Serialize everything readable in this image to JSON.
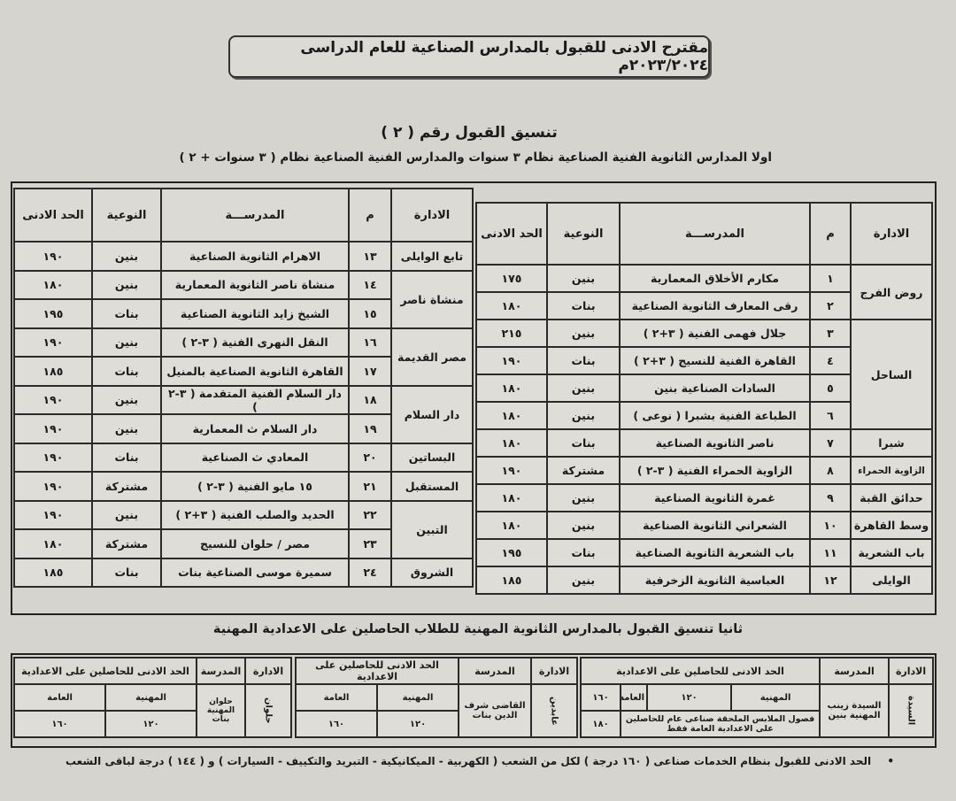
{
  "header": {
    "title": "مقترح الادنى للقبول بالمدارس الصناعية للعام الدراسى ٢٠٢٣/٢٠٢٤م",
    "coordination_title": "تنسيق القبول رقم ( ٢ )",
    "subtitle": "اولا  المدارس الثانوية الفنية الصناعية نظام ٣ سنوات والمدارس الفنية الصناعية نظام ( ٣ سنوات + ٢ )"
  },
  "columns": {
    "admin": "الادارة",
    "num": "م",
    "school": "المدرســـة",
    "type": "النوعية",
    "min": "الحد الادنى"
  },
  "right_table": [
    {
      "admin": "روض الفرج",
      "rows": [
        {
          "n": "١",
          "school": "مكارم الأخلاق المعمارية",
          "type": "بنين",
          "min": "١٧٥"
        },
        {
          "n": "٢",
          "school": "رقى المعارف الثانوية الصناعية",
          "type": "بنات",
          "min": "١٨٠"
        }
      ]
    },
    {
      "admin": "الساحل",
      "rows": [
        {
          "n": "٣",
          "school": "جلال فهمى الفنية ( ٣+٢ )",
          "type": "بنين",
          "min": "٢١٥"
        },
        {
          "n": "٤",
          "school": "القاهرة الفنية للنسيج ( ٣+٢ )",
          "type": "بنات",
          "min": "١٩٠"
        },
        {
          "n": "٥",
          "school": "السادات الصناعية بنين",
          "type": "بنين",
          "min": "١٨٠"
        },
        {
          "n": "٦",
          "school": "الطباعة الفنية بشبرا ( نوعى )",
          "type": "بنين",
          "min": "١٨٠"
        }
      ]
    },
    {
      "admin": "شبرا",
      "rows": [
        {
          "n": "٧",
          "school": "ناصر الثانوية الصناعية",
          "type": "بنات",
          "min": "١٨٠"
        }
      ]
    },
    {
      "admin": "الزاوية الحمراء",
      "rows": [
        {
          "n": "٨",
          "school": "الزاوية الحمراء الفنية ( ٣-٢ )",
          "type": "مشتركة",
          "min": "١٩٠"
        }
      ]
    },
    {
      "admin": "حدائق القبة",
      "rows": [
        {
          "n": "٩",
          "school": "غمرة الثانوية الصناعية",
          "type": "بنين",
          "min": "١٨٠"
        }
      ]
    },
    {
      "admin": "وسط القاهرة",
      "rows": [
        {
          "n": "١٠",
          "school": "الشعراني الثانوية الصناعية",
          "type": "بنين",
          "min": "١٨٠"
        }
      ]
    },
    {
      "admin": "باب الشعرية",
      "rows": [
        {
          "n": "١١",
          "school": "باب الشعرية الثانوية الصناعية",
          "type": "بنات",
          "min": "١٩٥"
        }
      ]
    },
    {
      "admin": "الوايلى",
      "rows": [
        {
          "n": "١٢",
          "school": "العباسية الثانوية الزخرفية",
          "type": "بنين",
          "min": "١٨٥"
        }
      ]
    }
  ],
  "left_table": [
    {
      "admin": "تابع الوايلى",
      "rows": [
        {
          "n": "١٣",
          "school": "الاهرام الثانوية الصناعية",
          "type": "بنين",
          "min": "١٩٠"
        }
      ]
    },
    {
      "admin": "منشاة ناصر",
      "rows": [
        {
          "n": "١٤",
          "school": "منشاة ناصر الثانوية المعمارية",
          "type": "بنين",
          "min": "١٨٠"
        },
        {
          "n": "١٥",
          "school": "الشيخ زايد الثانوية الصناعية",
          "type": "بنات",
          "min": "١٩٥"
        }
      ]
    },
    {
      "admin": "مصر القديمة",
      "rows": [
        {
          "n": "١٦",
          "school": "النقل النهرى الفنية ( ٣-٢ )",
          "type": "بنين",
          "min": "١٩٠"
        },
        {
          "n": "١٧",
          "school": "القاهرة الثانوية الصناعية بالمنيل",
          "type": "بنات",
          "min": "١٨٥"
        }
      ]
    },
    {
      "admin": "دار السلام",
      "rows": [
        {
          "n": "١٨",
          "school": "دار السلام الفنية المتقدمة ( ٣-٢ )",
          "type": "بنين",
          "min": "١٩٠"
        },
        {
          "n": "١٩",
          "school": "دار السلام ث المعمارية",
          "type": "بنين",
          "min": "١٩٠"
        }
      ]
    },
    {
      "admin": "البساتين",
      "rows": [
        {
          "n": "٢٠",
          "school": "المعادي ث الصناعية",
          "type": "بنات",
          "min": "١٩٠"
        }
      ]
    },
    {
      "admin": "المستقبل",
      "rows": [
        {
          "n": "٢١",
          "school": "١٥ مايو الفنية ( ٣-٢ )",
          "type": "مشتركة",
          "min": "١٩٠"
        }
      ]
    },
    {
      "admin": "التبين",
      "rows": [
        {
          "n": "٢٢",
          "school": "الحديد والصلب الفنية ( ٣+٢ )",
          "type": "بنين",
          "min": "١٩٠"
        },
        {
          "n": "٢٣",
          "school": "مصر / حلوان للنسيج",
          "type": "مشتركة",
          "min": "١٨٠"
        }
      ]
    },
    {
      "admin": "الشروق",
      "rows": [
        {
          "n": "٢٤",
          "school": "سميرة موسى الصناعية بنات",
          "type": "بنات",
          "min": "١٨٥"
        }
      ]
    }
  ],
  "section2": {
    "title": "ثانيا  تنسيق القبول بالمدارس الثانوية المهنية للطلاب الحاصلين على الاعدادية المهنية",
    "col_admin": "الادارة",
    "col_school": "المدرسة",
    "col_min": "الحد الادنى للحاصلين على الاعدادية",
    "vocational": "المهنية",
    "general": "العامة",
    "right": {
      "admin": "السيدة",
      "school": "السيدة زينب المهنية بنين",
      "vocational_min": "١٢٠",
      "general_min": "١٦٠",
      "extra_note": "فصول الملابس الملحقة صناعى عام للحاصلين على الاعدادية العامة فقط",
      "extra_min": "١٨٠"
    },
    "middle": {
      "admin": "عابدين",
      "school": "القاضى شرف الدين بنات",
      "vocational_min": "١٢٠",
      "general_min": "١٦٠"
    },
    "left": {
      "admin": "حلوان",
      "school": "حلوان المهنية بنات",
      "vocational_min": "١٢٠",
      "general_min": "١٦٠"
    }
  },
  "footer": {
    "bullet": "•",
    "note": "الحد الادنى للقبول بنظام الخدمات صناعى ( ١٦٠ درجة ) لكل من الشعب ( الكهربية - الميكانيكية - التبريد والتكييف - السيارات ) و ( ١٤٤ ) درجة لباقى الشعب"
  }
}
